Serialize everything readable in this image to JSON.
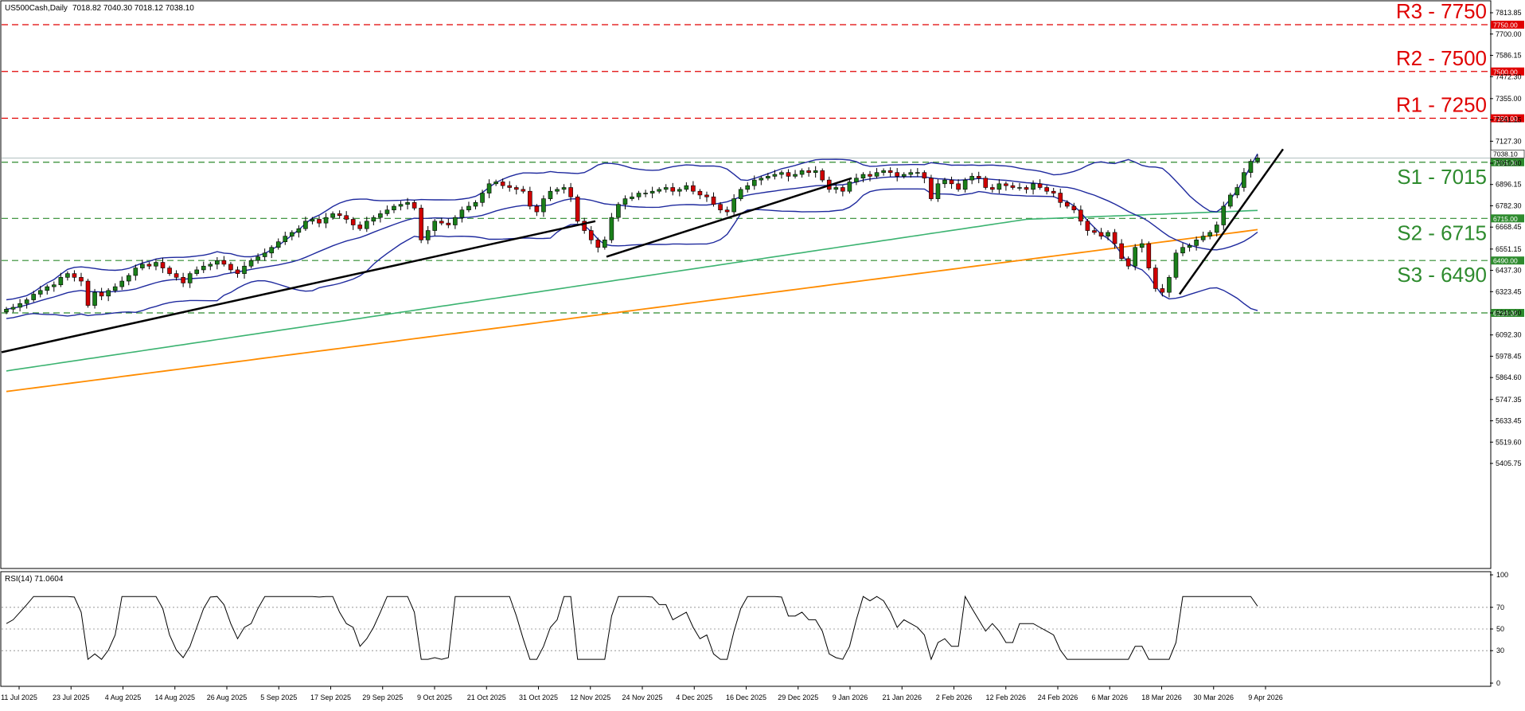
{
  "header": {
    "symbol": "US500Cash,Daily",
    "ohlc": "7018.82 7040.30 7018.12 7038.10"
  },
  "colors": {
    "up": "#1a7f1a",
    "down": "#d00000",
    "bollinger": "#1f2a9e",
    "ma_green": "#3cb371",
    "ma_orange": "#ff8c00",
    "resistance": "#e00000",
    "support": "#2e8b2e",
    "trendline": "#000000",
    "rsi": "#000000"
  },
  "chart_data": [
    {
      "type": "candlestick",
      "title": "US500Cash,Daily",
      "ylim": [
        5405.75,
        7813.85
      ],
      "y_ticks": [
        "7813.85",
        "7700.00",
        "7586.15",
        "7472.30",
        "7355.00",
        "7241.15",
        "7127.30",
        "7010.00",
        "6896.15",
        "6782.30",
        "6668.45",
        "6551.15",
        "6437.30",
        "6323.45",
        "6210.00",
        "6092.30",
        "5978.45",
        "5864.60",
        "5747.35",
        "5633.45",
        "5519.60",
        "5405.75"
      ],
      "x_ticks": [
        "11 Jul 2025",
        "23 Jul 2025",
        "4 Aug 2025",
        "14 Aug 2025",
        "26 Aug 2025",
        "5 Sep 2025",
        "17 Sep 2025",
        "29 Sep 2025",
        "9 Oct 2025",
        "21 Oct 2025",
        "31 Oct 2025",
        "12 Nov 2025",
        "24 Nov 2025",
        "4 Dec 2025",
        "16 Dec 2025",
        "29 Dec 2025",
        "9 Jan 2026",
        "21 Jan 2026",
        "2 Feb 2026",
        "12 Feb 2026",
        "24 Feb 2026",
        "6 Mar 2026",
        "18 Mar 2026",
        "30 Mar 2026",
        "9 Apr 2026"
      ],
      "levels": [
        {
          "label": "R3 - 7750",
          "value": 7750,
          "tag": "7750.00",
          "kind": "resistance"
        },
        {
          "label": "R2 - 7500",
          "value": 7500,
          "tag": "7500.00",
          "kind": "resistance"
        },
        {
          "label": "R1 - 7250",
          "value": 7250,
          "tag": "7250.00",
          "kind": "resistance"
        },
        {
          "label": "S1 - 7015",
          "value": 7015,
          "tag": "7015.00",
          "kind": "support"
        },
        {
          "label": "S2 - 6715",
          "value": 6715,
          "tag": "6715.00",
          "kind": "support"
        },
        {
          "label": "S3 - 6490",
          "value": 6490,
          "tag": "6490.00",
          "kind": "support"
        },
        {
          "label": "",
          "value": 6210,
          "tag": "6210.00",
          "kind": "support"
        }
      ],
      "last_price": {
        "value": 7038.1,
        "tag": "7038.10"
      },
      "close_path": [
        6230,
        6240,
        6260,
        6280,
        6310,
        6330,
        6350,
        6360,
        6400,
        6420,
        6400,
        6380,
        6250,
        6320,
        6300,
        6330,
        6350,
        6380,
        6410,
        6450,
        6470,
        6460,
        6480,
        6450,
        6420,
        6400,
        6370,
        6420,
        6440,
        6460,
        6470,
        6490,
        6470,
        6440,
        6420,
        6460,
        6490,
        6510,
        6530,
        6560,
        6590,
        6620,
        6640,
        6660,
        6700,
        6710,
        6690,
        6720,
        6740,
        6730,
        6710,
        6680,
        6660,
        6700,
        6720,
        6740,
        6760,
        6780,
        6790,
        6800,
        6770,
        6600,
        6650,
        6700,
        6690,
        6680,
        6720,
        6760,
        6780,
        6800,
        6850,
        6900,
        6910,
        6890,
        6880,
        6870,
        6860,
        6780,
        6750,
        6820,
        6860,
        6870,
        6880,
        6830,
        6700,
        6650,
        6600,
        6560,
        6600,
        6720,
        6790,
        6820,
        6830,
        6850,
        6850,
        6860,
        6870,
        6880,
        6860,
        6870,
        6890,
        6860,
        6840,
        6830,
        6790,
        6760,
        6750,
        6820,
        6870,
        6890,
        6920,
        6930,
        6940,
        6950,
        6960,
        6940,
        6950,
        6970,
        6960,
        6970,
        6920,
        6870,
        6880,
        6860,
        6910,
        6930,
        6950,
        6940,
        6960,
        6970,
        6960,
        6940,
        6950,
        6960,
        6960,
        6930,
        6820,
        6900,
        6920,
        6900,
        6870,
        6920,
        6940,
        6930,
        6880,
        6870,
        6900,
        6890,
        6880,
        6880,
        6870,
        6900,
        6880,
        6860,
        6850,
        6800,
        6780,
        6760,
        6700,
        6650,
        6640,
        6620,
        6640,
        6580,
        6500,
        6460,
        6560,
        6580,
        6450,
        6340,
        6320,
        6400,
        6530,
        6560,
        6570,
        6600,
        6620,
        6640,
        6680,
        6780,
        6840,
        6880,
        6960,
        7020,
        7038
      ]
    },
    {
      "type": "line",
      "title": "RSI(14) 71.0604",
      "ylim": [
        0,
        100
      ],
      "y_ticks": [
        "100",
        "70",
        "50",
        "30",
        "0"
      ],
      "reference_lines": [
        70,
        50,
        30
      ],
      "last_value": 71.06
    }
  ]
}
